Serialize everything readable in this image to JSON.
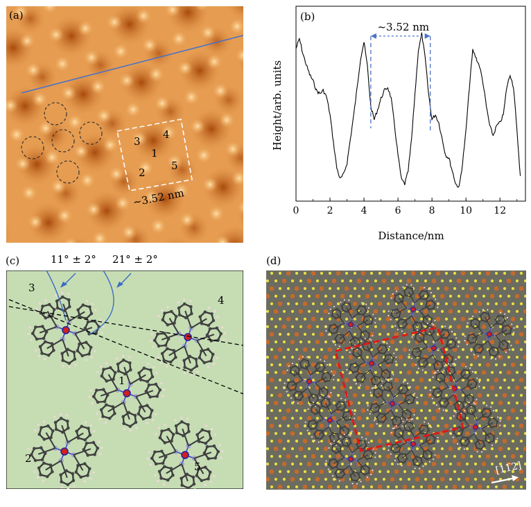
{
  "panel_a": {
    "label": "(a)",
    "cell_numbers": [
      "3",
      "4",
      "1",
      "2",
      "5"
    ],
    "scale_label": "~3.52 nm"
  },
  "panel_b": {
    "label": "(b)",
    "annotation": "~3.52 nm"
  },
  "panel_c": {
    "label": "(c)",
    "angle_1": "11° ± 2°",
    "angle_2": "21° ± 2°",
    "molecule_numbers": [
      "3",
      "4",
      "1",
      "2",
      "5"
    ]
  },
  "panel_d": {
    "label": "(d)",
    "direction_label": "[11̅2]"
  },
  "chart_data": {
    "type": "line",
    "title": "",
    "xlabel": "Distance/nm",
    "ylabel": "Height/arb. units",
    "xlim": [
      0,
      13.5
    ],
    "xticks": [
      0,
      2,
      4,
      6,
      8,
      10,
      12
    ],
    "x": [
      0,
      0.2,
      0.4,
      0.6,
      0.8,
      1.0,
      1.2,
      1.4,
      1.6,
      1.8,
      2.0,
      2.2,
      2.4,
      2.6,
      2.8,
      3.0,
      3.2,
      3.4,
      3.6,
      3.8,
      4.0,
      4.2,
      4.4,
      4.6,
      4.8,
      5.0,
      5.2,
      5.4,
      5.6,
      5.8,
      6.0,
      6.2,
      6.4,
      6.6,
      6.8,
      7.0,
      7.2,
      7.4,
      7.6,
      7.8,
      8.0,
      8.2,
      8.4,
      8.6,
      8.8,
      9.0,
      9.2,
      9.4,
      9.6,
      9.8,
      10.0,
      10.2,
      10.4,
      10.6,
      10.8,
      11.0,
      11.2,
      11.4,
      11.6,
      11.8,
      12.0,
      12.2,
      12.4,
      12.6,
      12.8,
      13.0,
      13.2
    ],
    "series": [
      {
        "values": [
          0.86,
          0.92,
          0.83,
          0.76,
          0.7,
          0.66,
          0.6,
          0.58,
          0.6,
          0.56,
          0.45,
          0.28,
          0.12,
          0.05,
          0.08,
          0.15,
          0.3,
          0.45,
          0.62,
          0.8,
          0.9,
          0.75,
          0.5,
          0.42,
          0.48,
          0.55,
          0.6,
          0.62,
          0.55,
          0.38,
          0.2,
          0.05,
          0.02,
          0.1,
          0.3,
          0.58,
          0.85,
          0.95,
          0.8,
          0.58,
          0.42,
          0.45,
          0.4,
          0.3,
          0.2,
          0.18,
          0.1,
          0.02,
          0.0,
          0.15,
          0.35,
          0.62,
          0.85,
          0.8,
          0.75,
          0.65,
          0.5,
          0.38,
          0.32,
          0.38,
          0.4,
          0.45,
          0.62,
          0.7,
          0.62,
          0.35,
          0.07
        ]
      }
    ],
    "annotation": {
      "text": "~3.52 nm",
      "x_start": 4.4,
      "x_end": 7.9
    }
  }
}
